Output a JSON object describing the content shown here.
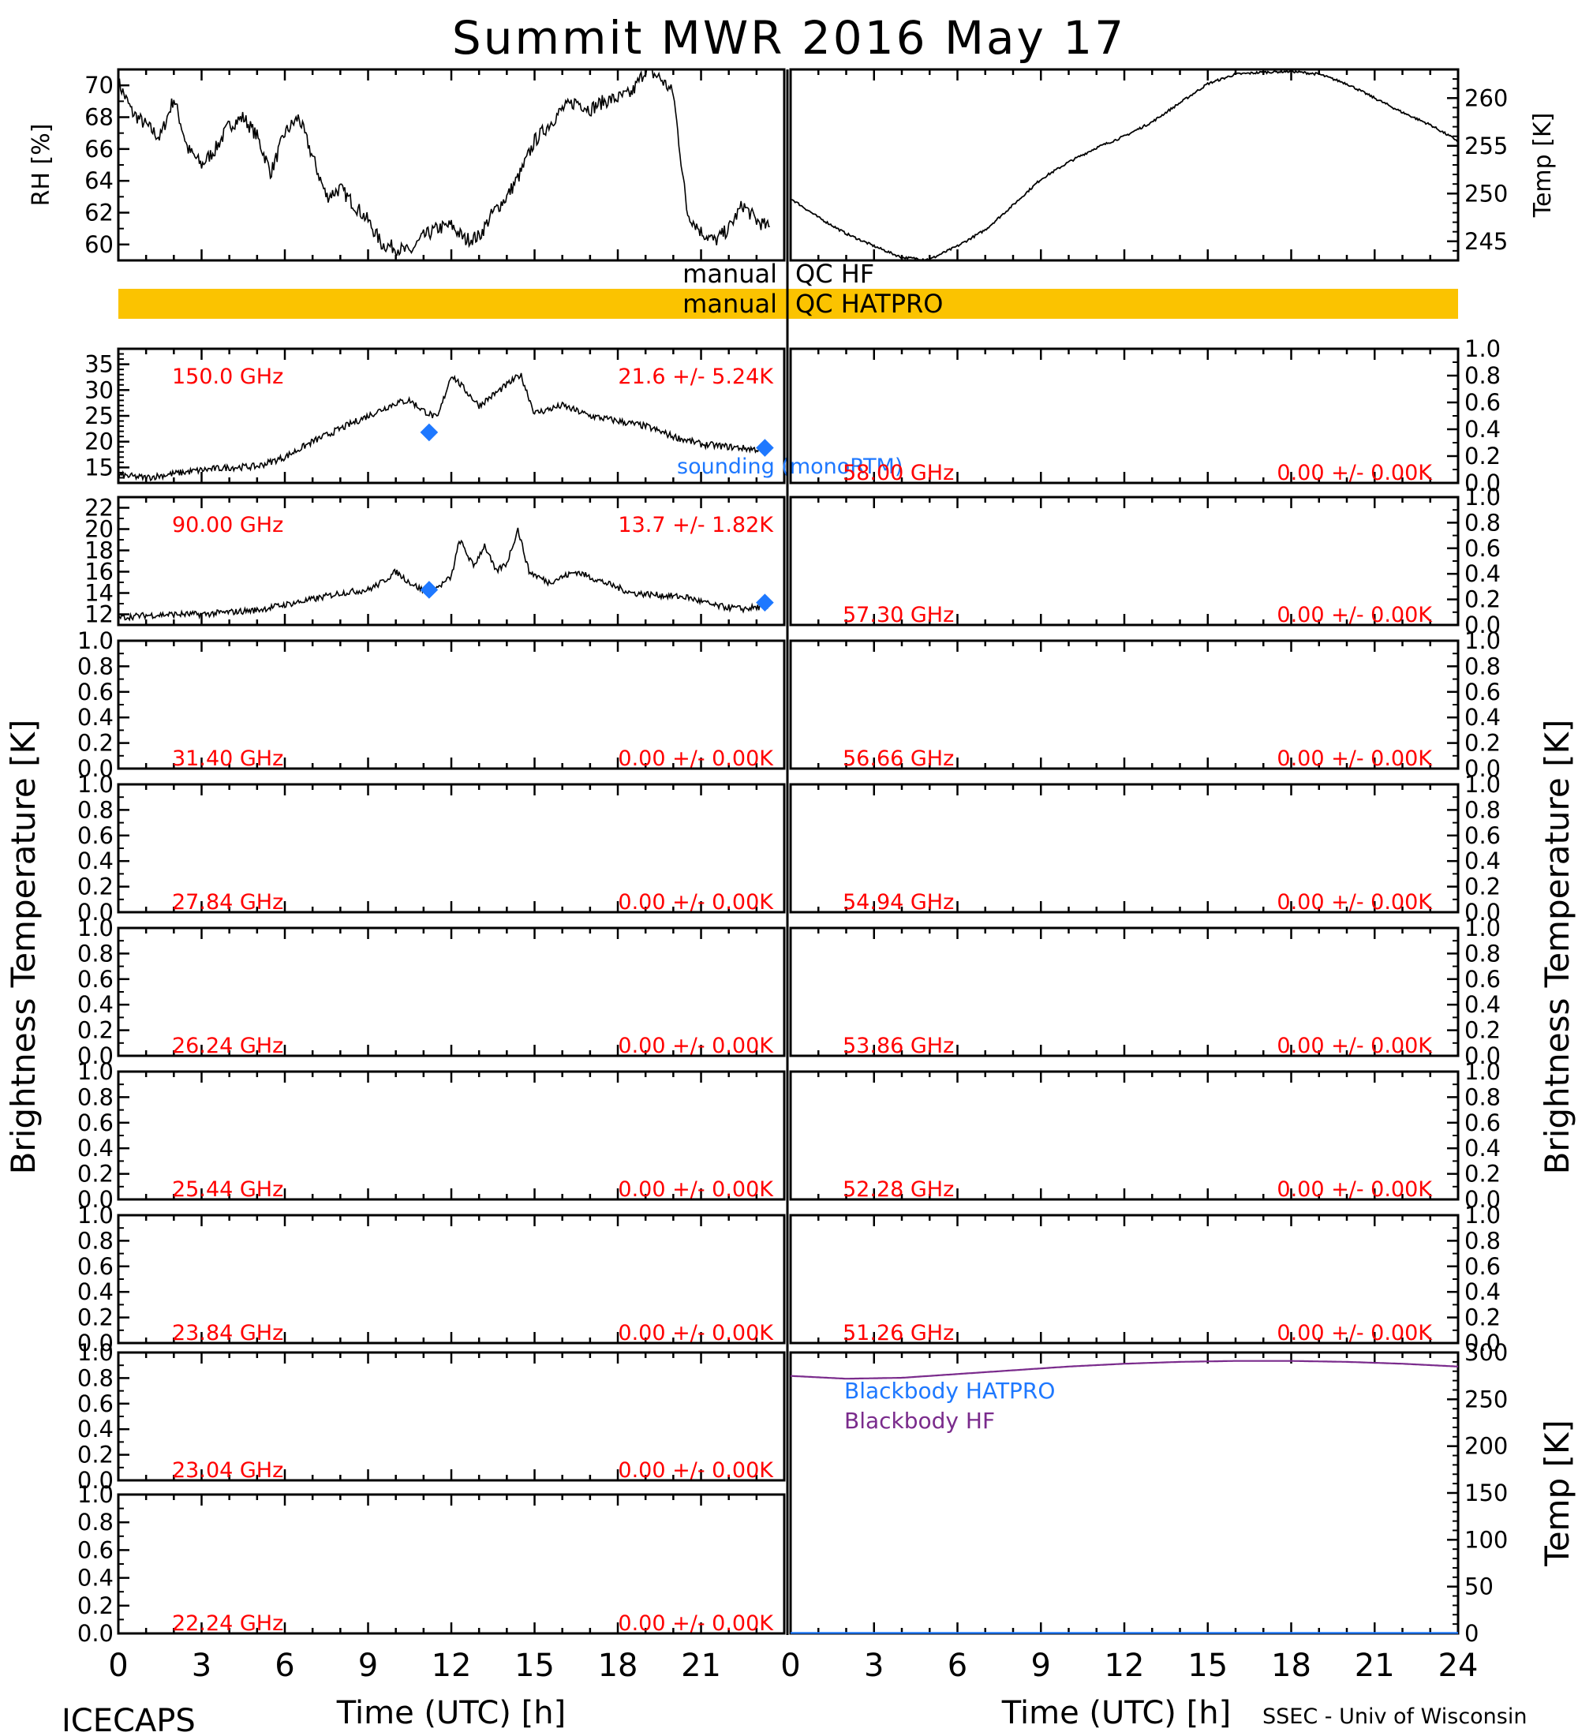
{
  "title": "Summit MWR 2016 May 17",
  "footer": {
    "left": "ICECAPS",
    "right": "SSEC - Univ of Wisconsin"
  },
  "xaxis": {
    "label": "Time (UTC) [h]",
    "ticks_left": [
      "0",
      "3",
      "6",
      "9",
      "12",
      "15",
      "18",
      "21"
    ],
    "ticks_right": [
      "0",
      "3",
      "6",
      "9",
      "12",
      "15",
      "18",
      "21",
      "24"
    ]
  },
  "side_labels": {
    "left": "Brightness Temperature [K]",
    "right": "Brightness Temperature [K]",
    "right_bottom": "Temp [K]"
  },
  "qc": {
    "hf": {
      "word": "manual",
      "label": "QC HF"
    },
    "hatpro": {
      "word": "manual",
      "label": "QC HATPRO",
      "color": "#FBC300"
    }
  },
  "colors": {
    "stat_label": "#FF0000",
    "sounding": "#1E78FF",
    "bb_hatpro": "#1E78FF",
    "bb_hf": "#7A2B8C",
    "trace": "#000000"
  },
  "chart_data": [
    {
      "id": "rh",
      "type": "line",
      "ylabel": "RH [%]",
      "ylim": [
        59,
        71
      ],
      "yticks": [
        "60",
        "62",
        "64",
        "66",
        "68",
        "70"
      ],
      "x": [
        0,
        0.5,
        1,
        1.5,
        2,
        2.5,
        3,
        3.5,
        4,
        4.5,
        5,
        5.5,
        6,
        6.5,
        7,
        7.5,
        8,
        8.5,
        9,
        9.5,
        10,
        10.5,
        11,
        11.5,
        12,
        12.5,
        13,
        13.5,
        14,
        14.5,
        15,
        15.5,
        16,
        16.5,
        17,
        17.5,
        18,
        18.5,
        19,
        19.5,
        20,
        20.5,
        21,
        21.5,
        22,
        22.5,
        23,
        23.5
      ],
      "values": [
        70.2,
        68.3,
        67.5,
        66.7,
        69.2,
        66.0,
        65.0,
        66.0,
        67.5,
        68.0,
        66.8,
        64.5,
        67.0,
        68.0,
        65.5,
        63.0,
        63.5,
        62.5,
        61.5,
        60.0,
        59.8,
        59.5,
        60.5,
        61.0,
        61.2,
        60.3,
        60.5,
        62.0,
        63.0,
        64.5,
        66.5,
        67.5,
        68.5,
        69.0,
        68.5,
        69.0,
        69.2,
        69.5,
        71.0,
        70.5,
        69.5,
        62.0,
        60.8,
        60.2,
        61.0,
        62.5,
        61.5,
        61.0
      ]
    },
    {
      "id": "temp",
      "type": "line",
      "ylabel": "Temp [K]",
      "ylim": [
        243,
        263
      ],
      "yticks": [
        "245",
        "250",
        "255",
        "260"
      ],
      "x": [
        0,
        1,
        2,
        3,
        4,
        5,
        6,
        7,
        8,
        9,
        10,
        11,
        12,
        13,
        14,
        15,
        16,
        17,
        18,
        19,
        20,
        21,
        22,
        23,
        24
      ],
      "values": [
        249.5,
        247.5,
        245.8,
        244.5,
        243.3,
        243.1,
        244.5,
        246.2,
        248.8,
        251.5,
        253.3,
        254.8,
        256.0,
        257.5,
        259.5,
        261.5,
        262.5,
        262.7,
        262.8,
        262.5,
        261.5,
        260.0,
        258.5,
        257.2,
        255.5
      ]
    },
    {
      "id": "ch150",
      "type": "line",
      "freq_label": "150.0 GHz",
      "stat_label": "21.6 +/-  5.24K",
      "ylim": [
        12,
        38
      ],
      "yticks": [
        "15",
        "20",
        "25",
        "30",
        "35"
      ],
      "x": [
        0,
        1,
        2,
        3,
        4,
        5,
        6,
        7,
        8,
        9,
        10,
        10.5,
        11,
        11.5,
        12,
        12.5,
        13,
        13.5,
        14,
        14.5,
        15,
        16,
        17,
        18,
        19,
        20,
        21,
        22,
        23,
        23.5
      ],
      "values": [
        13.5,
        13.0,
        13.8,
        14.5,
        15.0,
        15.2,
        17.0,
        20.0,
        22.5,
        25.0,
        27.5,
        28.0,
        26.0,
        24.5,
        33.0,
        30.0,
        27.0,
        29.0,
        31.0,
        33.0,
        25.5,
        27.0,
        25.0,
        24.0,
        23.0,
        21.0,
        19.5,
        19.0,
        18.5,
        18.8
      ],
      "sounding": {
        "label": "sounding (monoRTM)",
        "x": [
          11.2,
          23.3
        ],
        "values": [
          21.8,
          18.8
        ]
      }
    },
    {
      "id": "ch90",
      "type": "line",
      "freq_label": "90.00 GHz",
      "stat_label": "13.7 +/-  1.82K",
      "ylim": [
        11,
        23
      ],
      "yticks": [
        "12",
        "14",
        "16",
        "18",
        "20",
        "22"
      ],
      "x": [
        0,
        1,
        2,
        3,
        4,
        5,
        6,
        7,
        8,
        9,
        9.5,
        10,
        10.5,
        11,
        11.5,
        12,
        12.3,
        12.8,
        13.2,
        13.6,
        14,
        14.4,
        14.8,
        15.5,
        16.5,
        17.5,
        18.5,
        19.5,
        20.5,
        21.5,
        22.5,
        23.5
      ],
      "values": [
        11.7,
        11.9,
        12.0,
        12.0,
        12.2,
        12.4,
        12.9,
        13.4,
        14.0,
        14.3,
        15.0,
        16.0,
        15.0,
        14.2,
        14.5,
        15.5,
        19.0,
        16.5,
        18.5,
        16.0,
        16.8,
        20.0,
        16.0,
        15.0,
        16.0,
        15.0,
        14.0,
        13.8,
        13.6,
        12.8,
        12.5,
        12.8
      ],
      "sounding": {
        "x": [
          11.2,
          23.3
        ],
        "values": [
          14.3,
          13.1
        ]
      }
    },
    {
      "id": "ch31",
      "freq_label": "31.40 GHz",
      "stat_label": "0.00 +/-  0.00K"
    },
    {
      "id": "ch27",
      "freq_label": "27.84 GHz",
      "stat_label": "0.00 +/-  0.00K"
    },
    {
      "id": "ch26",
      "freq_label": "26.24 GHz",
      "stat_label": "0.00 +/-  0.00K"
    },
    {
      "id": "ch25",
      "freq_label": "25.44 GHz",
      "stat_label": "0.00 +/-  0.00K"
    },
    {
      "id": "ch23b",
      "freq_label": "23.84 GHz",
      "stat_label": "0.00 +/-  0.00K"
    },
    {
      "id": "ch23a",
      "freq_label": "23.04 GHz",
      "stat_label": "0.00 +/-  0.00K"
    },
    {
      "id": "ch22",
      "freq_label": "22.24 GHz",
      "stat_label": "0.00 +/-  0.00K"
    },
    {
      "id": "ch58",
      "freq_label": "58.00 GHz",
      "stat_label": "0.00 +/-  0.00K"
    },
    {
      "id": "ch57",
      "freq_label": "57.30 GHz",
      "stat_label": "0.00 +/-  0.00K"
    },
    {
      "id": "ch56",
      "freq_label": "56.66 GHz",
      "stat_label": "0.00 +/-  0.00K"
    },
    {
      "id": "ch54",
      "freq_label": "54.94 GHz",
      "stat_label": "0.00 +/-  0.00K"
    },
    {
      "id": "ch53",
      "freq_label": "53.86 GHz",
      "stat_label": "0.00 +/-  0.00K"
    },
    {
      "id": "ch52",
      "freq_label": "52.28 GHz",
      "stat_label": "0.00 +/-  0.00K"
    },
    {
      "id": "ch51",
      "freq_label": "51.26 GHz",
      "stat_label": "0.00 +/-  0.00K"
    },
    {
      "id": "blackbody",
      "type": "line",
      "ylim": [
        0,
        300
      ],
      "yticks": [
        "0",
        "50",
        "100",
        "150",
        "200",
        "250",
        "300"
      ],
      "series": [
        {
          "name": "Blackbody HATPRO",
          "x": [
            0,
            24
          ],
          "values": [
            0.5,
            0.5
          ]
        },
        {
          "name": "Blackbody HF",
          "x": [
            0,
            2,
            4,
            6,
            8,
            10,
            12,
            14,
            16,
            18,
            20,
            22,
            24
          ],
          "values": [
            275,
            272,
            273,
            277,
            281,
            285,
            288,
            290,
            291,
            291,
            290,
            288,
            285
          ]
        }
      ]
    }
  ],
  "unit_ticks": [
    "0.0",
    "0.2",
    "0.4",
    "0.6",
    "0.8",
    "1.0"
  ]
}
